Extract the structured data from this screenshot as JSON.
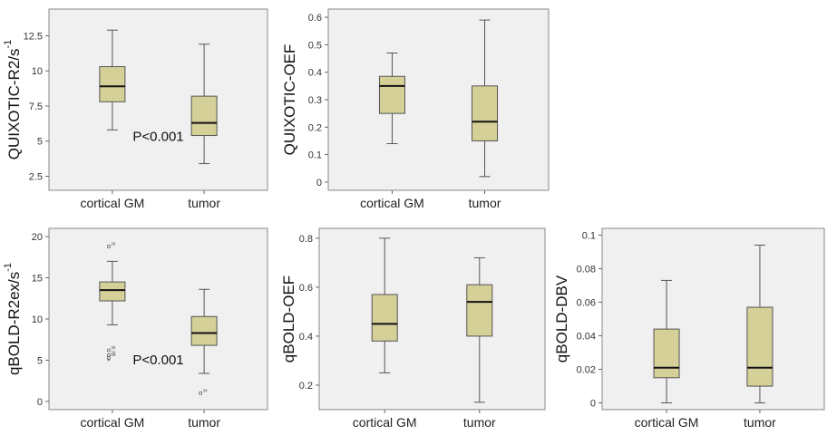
{
  "colors": {
    "panel_bg": "#f0f0f0",
    "box_fill": "#d5cf98",
    "box_stroke": "#555555",
    "median": "#111111"
  },
  "chart_data": [
    {
      "type": "box",
      "ylabel": "QUIXOTIC-R2/s",
      "ylabel_sup": "-1",
      "ylim": [
        1.5,
        14.4
      ],
      "yticks": [
        "2.5",
        "5",
        "7.5",
        "10",
        "12.5"
      ],
      "categories": [
        "cortical GM",
        "tumor"
      ],
      "boxes": [
        {
          "min": 5.8,
          "q1": 7.8,
          "median": 8.9,
          "q3": 10.3,
          "max": 12.9
        },
        {
          "min": 3.4,
          "q1": 5.4,
          "median": 6.3,
          "q3": 8.2,
          "max": 11.9
        }
      ],
      "outliers": [],
      "annotation": {
        "text": "P<0.001",
        "x": 1.5,
        "y": 5.0
      }
    },
    {
      "type": "box",
      "ylabel": "QUIXOTIC-OEF",
      "ylim": [
        -0.03,
        0.63
      ],
      "yticks": [
        "0",
        "0.1",
        "0.2",
        "0.3",
        "0.4",
        "0.5",
        "0.6"
      ],
      "categories": [
        "cortical GM",
        "tumor"
      ],
      "boxes": [
        {
          "min": 0.14,
          "q1": 0.25,
          "median": 0.35,
          "q3": 0.385,
          "max": 0.47
        },
        {
          "min": 0.02,
          "q1": 0.15,
          "median": 0.22,
          "q3": 0.35,
          "max": 0.59
        }
      ],
      "outliers": []
    },
    {
      "type": "box",
      "ylabel": "qBOLD-R2ex/s",
      "ylabel_sup": "-1",
      "ylim": [
        -1,
        21
      ],
      "yticks": [
        "0",
        "5",
        "10",
        "15",
        "20"
      ],
      "categories": [
        "cortical GM",
        "tumor"
      ],
      "boxes": [
        {
          "min": 9.3,
          "q1": 12.2,
          "median": 13.5,
          "q3": 14.5,
          "max": 17.0
        },
        {
          "min": 3.4,
          "q1": 6.8,
          "median": 8.3,
          "q3": 10.3,
          "max": 13.6
        }
      ],
      "outliers": [
        {
          "cat": 0,
          "y": 18.8,
          "label": "26",
          "marker": "circle"
        },
        {
          "cat": 0,
          "y": 6.2,
          "label": "30",
          "marker": "circle"
        },
        {
          "cat": 0,
          "y": 5.6,
          "label": "20",
          "marker": "circle"
        },
        {
          "cat": 0,
          "y": 5.3,
          "label": "29",
          "marker": "circle"
        },
        {
          "cat": 0,
          "y": 5.0,
          "label": "",
          "marker": "star"
        },
        {
          "cat": 1,
          "y": 1.0,
          "label": "34",
          "marker": "circle"
        }
      ],
      "annotation": {
        "text": "P<0.001",
        "x": 1.5,
        "y": 4.5
      }
    },
    {
      "type": "box",
      "ylabel": "qBOLD-OEF",
      "ylim": [
        0.1,
        0.84
      ],
      "yticks": [
        "0.2",
        "0.4",
        "0.6",
        "0.8"
      ],
      "categories": [
        "cortical GM",
        "tumor"
      ],
      "boxes": [
        {
          "min": 0.25,
          "q1": 0.38,
          "median": 0.45,
          "q3": 0.57,
          "max": 0.8
        },
        {
          "min": 0.13,
          "q1": 0.4,
          "median": 0.54,
          "q3": 0.61,
          "max": 0.72
        }
      ],
      "outliers": []
    },
    {
      "type": "box",
      "ylabel": "qBOLD-DBV",
      "ylim": [
        -0.004,
        0.104
      ],
      "yticks": [
        "0",
        "0.02",
        "0.04",
        "0.06",
        "0.08",
        "0.1"
      ],
      "categories": [
        "cortical GM",
        "tumor"
      ],
      "boxes": [
        {
          "min": 0.0,
          "q1": 0.015,
          "median": 0.021,
          "q3": 0.044,
          "max": 0.073
        },
        {
          "min": 0.0,
          "q1": 0.01,
          "median": 0.021,
          "q3": 0.057,
          "max": 0.094
        }
      ],
      "outliers": []
    }
  ]
}
